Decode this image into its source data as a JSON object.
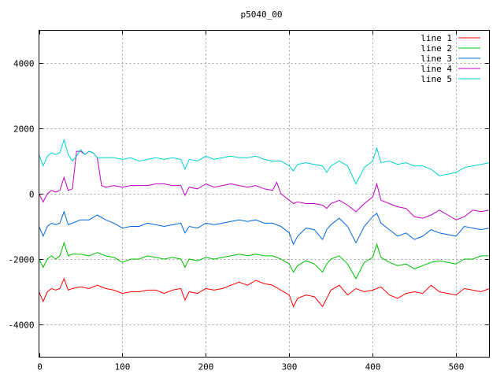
{
  "chart_data": {
    "type": "line",
    "title": "p5040_00",
    "xlabel": "",
    "ylabel": "",
    "xlim": [
      0,
      540
    ],
    "ylim": [
      -5000,
      5000
    ],
    "x_ticks": [
      0,
      100,
      200,
      300,
      400,
      500
    ],
    "y_ticks": [
      -4000,
      -2000,
      0,
      2000,
      4000
    ],
    "grid": true,
    "legend_position": "top-right",
    "series": [
      {
        "name": "line 1",
        "color": "#ff0000",
        "x": [
          0,
          5,
          10,
          15,
          20,
          25,
          30,
          35,
          40,
          50,
          60,
          70,
          80,
          90,
          100,
          110,
          120,
          130,
          140,
          150,
          160,
          170,
          175,
          180,
          190,
          200,
          210,
          220,
          230,
          240,
          250,
          260,
          270,
          280,
          290,
          300,
          305,
          310,
          320,
          330,
          340,
          345,
          350,
          360,
          370,
          380,
          390,
          400,
          410,
          420,
          430,
          440,
          450,
          460,
          470,
          480,
          490,
          500,
          510,
          520,
          530,
          540
        ],
        "y": [
          -3000,
          -3300,
          -3000,
          -2900,
          -2950,
          -2900,
          -2600,
          -2950,
          -2900,
          -2850,
          -2900,
          -2800,
          -2900,
          -2950,
          -3050,
          -3000,
          -3000,
          -2950,
          -2950,
          -3050,
          -2950,
          -2900,
          -3250,
          -3000,
          -3050,
          -2900,
          -2950,
          -2900,
          -2800,
          -2700,
          -2800,
          -2650,
          -2750,
          -2800,
          -2950,
          -3100,
          -3450,
          -3200,
          -3100,
          -3150,
          -3450,
          -3200,
          -2950,
          -2800,
          -3100,
          -2900,
          -3000,
          -2950,
          -2850,
          -3100,
          -3200,
          -3050,
          -3000,
          -3050,
          -2800,
          -3000,
          -3050,
          -3100,
          -2900,
          -2950,
          -3000,
          -2900
        ]
      },
      {
        "name": "line 2",
        "color": "#00c000",
        "x": [
          0,
          5,
          10,
          15,
          20,
          25,
          30,
          35,
          40,
          50,
          60,
          70,
          80,
          90,
          100,
          110,
          120,
          130,
          140,
          150,
          160,
          170,
          175,
          180,
          190,
          200,
          210,
          220,
          230,
          240,
          250,
          260,
          270,
          280,
          290,
          300,
          305,
          310,
          320,
          330,
          340,
          345,
          350,
          360,
          370,
          380,
          390,
          400,
          405,
          410,
          420,
          430,
          440,
          450,
          460,
          470,
          480,
          490,
          500,
          510,
          520,
          530,
          540
        ],
        "y": [
          -2000,
          -2250,
          -2000,
          -1900,
          -2000,
          -1900,
          -1500,
          -1900,
          -1850,
          -1850,
          -1900,
          -1800,
          -1900,
          -1950,
          -2100,
          -2000,
          -2000,
          -1900,
          -1950,
          -2000,
          -1950,
          -2000,
          -2250,
          -2000,
          -2050,
          -1950,
          -2000,
          -1950,
          -1900,
          -1850,
          -1900,
          -1850,
          -1900,
          -1900,
          -2000,
          -2150,
          -2400,
          -2200,
          -2050,
          -2150,
          -2400,
          -2150,
          -2000,
          -1900,
          -2150,
          -2600,
          -2100,
          -1950,
          -1550,
          -1950,
          -2100,
          -2200,
          -2150,
          -2300,
          -2200,
          -2100,
          -2050,
          -2100,
          -2150,
          -2000,
          -2000,
          -1900,
          -1900
        ]
      },
      {
        "name": "line 3",
        "color": "#0066dd",
        "x": [
          0,
          5,
          10,
          15,
          20,
          25,
          30,
          35,
          40,
          50,
          60,
          70,
          80,
          90,
          100,
          110,
          120,
          130,
          140,
          150,
          160,
          170,
          175,
          180,
          190,
          200,
          210,
          220,
          230,
          240,
          250,
          260,
          270,
          280,
          290,
          300,
          305,
          310,
          320,
          330,
          340,
          345,
          350,
          360,
          370,
          380,
          390,
          400,
          405,
          410,
          420,
          430,
          440,
          450,
          460,
          470,
          480,
          490,
          500,
          510,
          520,
          530,
          540
        ],
        "y": [
          -1000,
          -1300,
          -1000,
          -900,
          -950,
          -900,
          -550,
          -950,
          -900,
          -800,
          -800,
          -650,
          -800,
          -900,
          -1050,
          -1000,
          -1000,
          -900,
          -950,
          -1000,
          -950,
          -900,
          -1200,
          -1000,
          -1050,
          -900,
          -950,
          -900,
          -850,
          -800,
          -850,
          -800,
          -900,
          -900,
          -1000,
          -1200,
          -1550,
          -1300,
          -1050,
          -1100,
          -1400,
          -1100,
          -950,
          -750,
          -1000,
          -1500,
          -1000,
          -700,
          -600,
          -900,
          -1100,
          -1300,
          -1200,
          -1400,
          -1300,
          -1100,
          -1200,
          -1250,
          -1300,
          -1000,
          -1050,
          -1100,
          -1050
        ]
      },
      {
        "name": "line 4",
        "color": "#c000c0",
        "x": [
          0,
          5,
          10,
          15,
          20,
          25,
          30,
          35,
          40,
          45,
          50,
          55,
          60,
          65,
          70,
          75,
          80,
          90,
          100,
          110,
          120,
          130,
          140,
          150,
          160,
          170,
          175,
          180,
          190,
          200,
          210,
          220,
          230,
          240,
          250,
          260,
          270,
          280,
          285,
          290,
          300,
          305,
          310,
          320,
          330,
          340,
          345,
          350,
          360,
          370,
          380,
          390,
          400,
          405,
          410,
          420,
          430,
          440,
          450,
          460,
          470,
          480,
          490,
          500,
          510,
          520,
          530,
          540
        ],
        "y": [
          0,
          -250,
          0,
          100,
          50,
          100,
          500,
          100,
          150,
          1300,
          1300,
          1200,
          1300,
          1250,
          1100,
          250,
          200,
          250,
          200,
          250,
          250,
          250,
          300,
          300,
          250,
          250,
          -50,
          200,
          150,
          300,
          200,
          250,
          300,
          250,
          200,
          250,
          150,
          100,
          350,
          0,
          -200,
          -300,
          -250,
          -300,
          -300,
          -350,
          -450,
          -300,
          -200,
          -350,
          -550,
          -300,
          -100,
          300,
          -200,
          -300,
          -400,
          -450,
          -700,
          -750,
          -650,
          -500,
          -650,
          -800,
          -700,
          -500,
          -550,
          -500
        ]
      },
      {
        "name": "line 5",
        "color": "#00d0d0",
        "x": [
          0,
          5,
          10,
          15,
          20,
          25,
          30,
          35,
          40,
          45,
          50,
          55,
          60,
          65,
          70,
          75,
          80,
          90,
          100,
          110,
          120,
          130,
          140,
          150,
          160,
          170,
          175,
          180,
          190,
          200,
          210,
          220,
          230,
          240,
          250,
          260,
          270,
          280,
          290,
          300,
          305,
          310,
          320,
          330,
          340,
          345,
          350,
          360,
          370,
          380,
          390,
          400,
          405,
          410,
          420,
          430,
          440,
          450,
          460,
          470,
          480,
          490,
          500,
          510,
          520,
          530,
          540
        ],
        "y": [
          1200,
          850,
          1150,
          1250,
          1200,
          1250,
          1650,
          1200,
          1000,
          1150,
          1350,
          1200,
          1300,
          1250,
          1100,
          1100,
          1100,
          1100,
          1050,
          1100,
          1000,
          1050,
          1100,
          1050,
          1100,
          1050,
          750,
          1050,
          1000,
          1150,
          1050,
          1100,
          1150,
          1100,
          1100,
          1150,
          1050,
          1000,
          1000,
          850,
          700,
          900,
          950,
          900,
          850,
          650,
          850,
          1000,
          850,
          300,
          800,
          1000,
          1400,
          950,
          1000,
          900,
          950,
          850,
          850,
          750,
          550,
          600,
          650,
          800,
          850,
          900,
          950
        ]
      }
    ]
  }
}
